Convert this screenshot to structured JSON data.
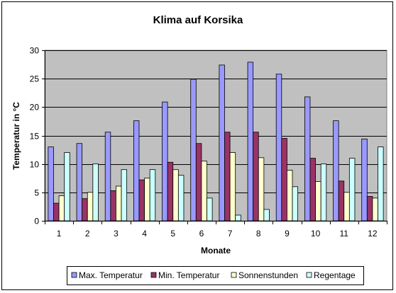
{
  "chart_data": {
    "type": "bar",
    "title": "Klima auf Korsika",
    "xlabel": "Monate",
    "ylabel": "Temperatur in °C",
    "categories": [
      "1",
      "2",
      "3",
      "4",
      "5",
      "6",
      "7",
      "8",
      "9",
      "10",
      "11",
      "12"
    ],
    "ylim": [
      0,
      30
    ],
    "yticks": [
      0,
      5,
      10,
      15,
      20,
      25,
      30
    ],
    "grid": true,
    "legend_position": "bottom",
    "series": [
      {
        "name": "Max. Temperatur",
        "color": "#9999ff",
        "values": [
          13,
          13.6,
          15.6,
          17.6,
          20.9,
          24.9,
          27.4,
          27.9,
          25.8,
          21.8,
          17.6,
          14.4
        ]
      },
      {
        "name": "Min. Temperatur",
        "color": "#993366",
        "values": [
          3.1,
          3.9,
          5.3,
          7.2,
          10.3,
          13.6,
          15.6,
          15.6,
          14.5,
          11,
          7,
          4.3
        ]
      },
      {
        "name": "Sonnenstunden",
        "color": "#ffffcc",
        "values": [
          4.4,
          5,
          6.1,
          7.5,
          9,
          10.5,
          12,
          11.1,
          8.9,
          6.9,
          5,
          4
        ]
      },
      {
        "name": "Regentage",
        "color": "#ccffff",
        "values": [
          12,
          10,
          9,
          9,
          8,
          4,
          1,
          2,
          6,
          10,
          11,
          13
        ]
      }
    ],
    "colors": {
      "plot_background": "#c0c0c0",
      "gridline": "#000000"
    }
  }
}
